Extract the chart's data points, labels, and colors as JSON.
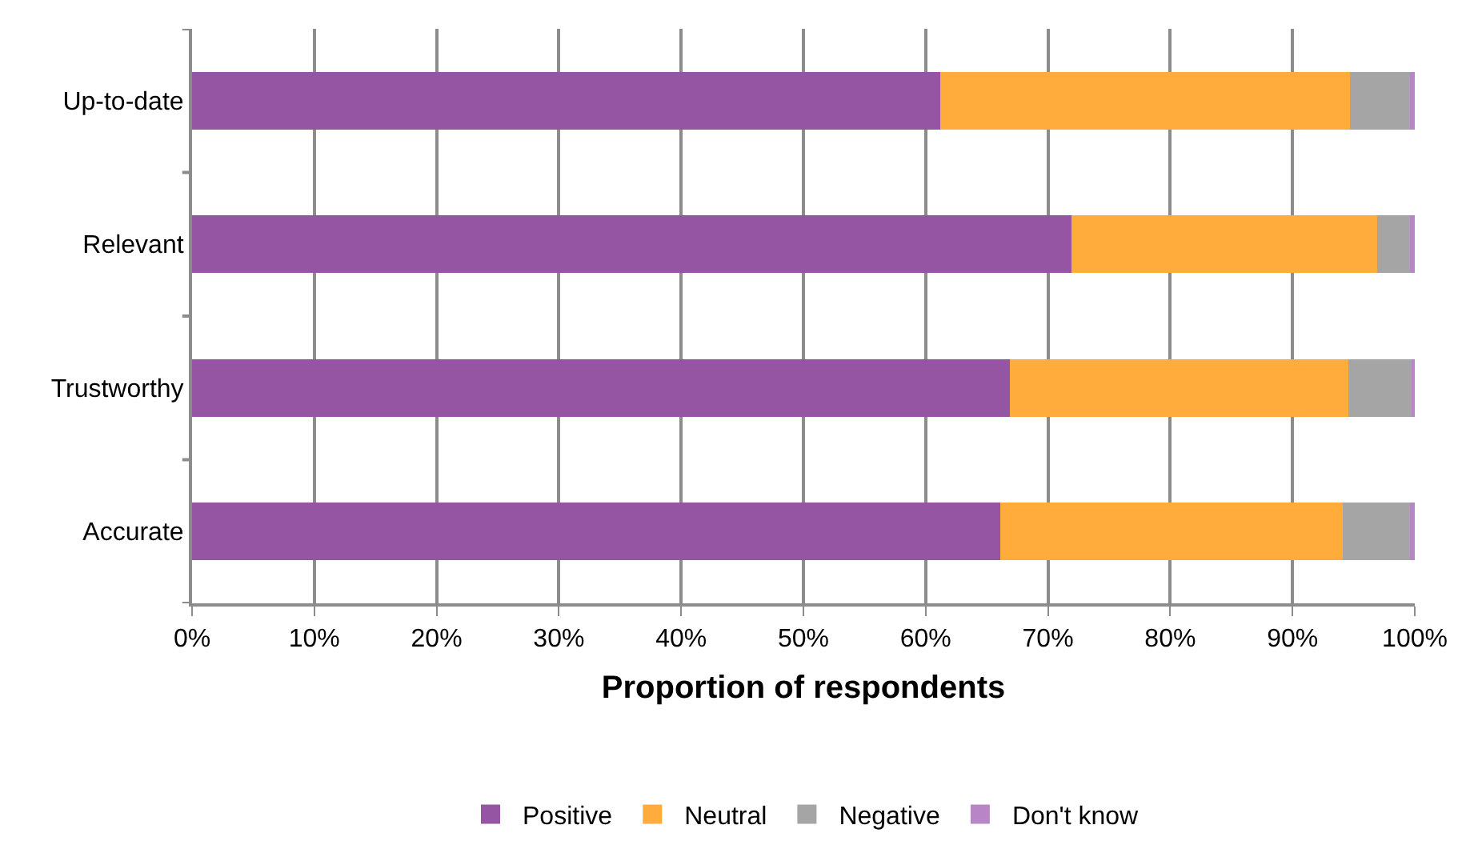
{
  "chart_data": {
    "type": "bar",
    "orientation": "horizontal",
    "stacked": true,
    "xlabel": "Proportion of respondents",
    "categories": [
      "Up-to-date",
      "Relevant",
      "Trustworthy",
      "Accurate"
    ],
    "series": [
      {
        "name": "Positive",
        "color": "#9655a3",
        "values": [
          61.2,
          71.9,
          66.9,
          66.1
        ]
      },
      {
        "name": "Neutral",
        "color": "#ffac3c",
        "values": [
          33.5,
          25.0,
          27.7,
          28.0
        ]
      },
      {
        "name": "Negative",
        "color": "#a5a5a5",
        "values": [
          4.9,
          2.7,
          5.2,
          5.5
        ]
      },
      {
        "name": "Don't know",
        "color": "#b886c6",
        "values": [
          0.4,
          0.4,
          0.2,
          0.4
        ]
      }
    ],
    "xlim": [
      0,
      100
    ],
    "xticks": [
      {
        "value": 0,
        "label": "0%"
      },
      {
        "value": 10,
        "label": "10%"
      },
      {
        "value": 20,
        "label": "20%"
      },
      {
        "value": 30,
        "label": "30%"
      },
      {
        "value": 40,
        "label": "40%"
      },
      {
        "value": 50,
        "label": "50%"
      },
      {
        "value": 60,
        "label": "60%"
      },
      {
        "value": 70,
        "label": "70%"
      },
      {
        "value": 80,
        "label": "80%"
      },
      {
        "value": 90,
        "label": "90%"
      },
      {
        "value": 100,
        "label": "100%"
      }
    ],
    "grid": "x",
    "legend": "bottom"
  }
}
